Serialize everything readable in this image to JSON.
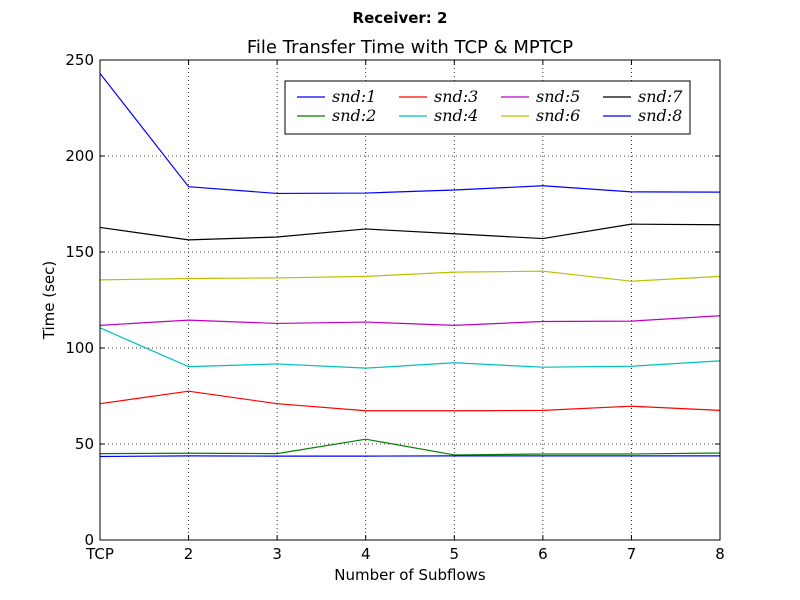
{
  "chart_data": {
    "type": "line",
    "suptitle": "Receiver: 2",
    "title": "File Transfer Time with TCP & MPTCP",
    "xlabel": "Number of Subflows",
    "ylabel": "Time (sec)",
    "categories": [
      "TCP",
      "2",
      "3",
      "4",
      "5",
      "6",
      "7",
      "8"
    ],
    "ylim": [
      0,
      250
    ],
    "yticks": [
      "0",
      "50",
      "100",
      "150",
      "200",
      "250"
    ],
    "grid": true,
    "legend_position": "top-right",
    "series": [
      {
        "name": "snd:1",
        "color": "#0000ff",
        "values": [
          243,
          184,
          180.5,
          180.7,
          182.3,
          184.5,
          181.3,
          181.2
        ]
      },
      {
        "name": "snd:2",
        "color": "#008000",
        "values": [
          45,
          45.2,
          45,
          52.5,
          44.3,
          44.8,
          44.8,
          45.3
        ]
      },
      {
        "name": "snd:3",
        "color": "#ff0000",
        "values": [
          71,
          77.5,
          71,
          67.3,
          67.3,
          67.5,
          69.7,
          67.5
        ]
      },
      {
        "name": "snd:4",
        "color": "#00bfbf",
        "values": [
          110.5,
          90.3,
          91.7,
          89.5,
          92.3,
          90,
          90.5,
          93.3
        ]
      },
      {
        "name": "snd:5",
        "color": "#bf00bf",
        "values": [
          111.8,
          114.5,
          112.8,
          113.5,
          111.8,
          113.8,
          114,
          116.8
        ]
      },
      {
        "name": "snd:6",
        "color": "#bfbf00",
        "values": [
          135.5,
          136.2,
          136.5,
          137.3,
          139.5,
          140,
          134.8,
          137.3
        ]
      },
      {
        "name": "snd:7",
        "color": "#000000",
        "values": [
          162.8,
          156.3,
          157.8,
          162,
          159.5,
          157,
          164.5,
          164.2
        ]
      },
      {
        "name": "snd:8",
        "color": "#0000ff",
        "values": [
          43.5,
          43.8,
          43.7,
          43.7,
          43.8,
          43.8,
          43.8,
          43.8
        ]
      }
    ]
  }
}
